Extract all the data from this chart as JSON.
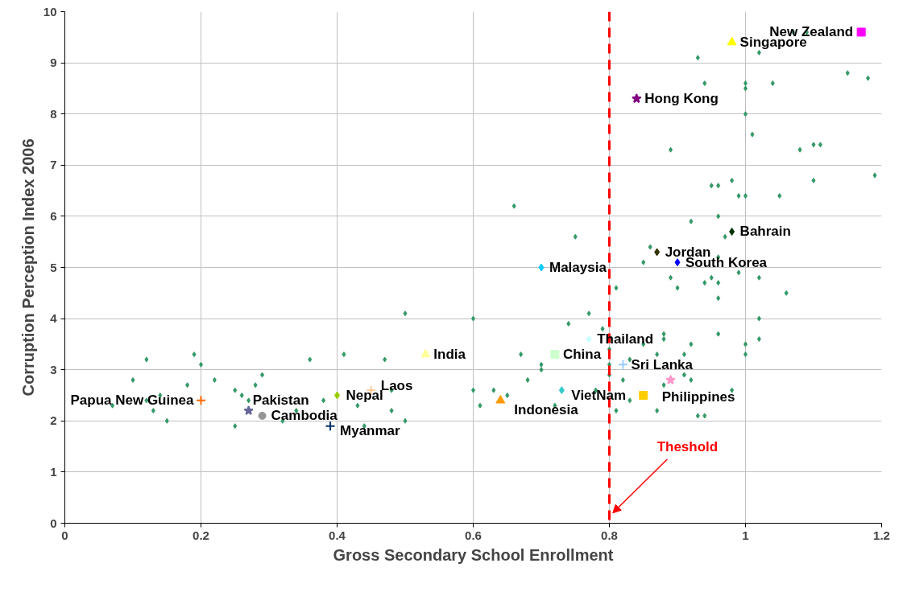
{
  "chart_data": {
    "type": "scatter",
    "xlabel": "Gross Secondary School Enrollment",
    "ylabel": "Corruption Perception Index 2006",
    "xlim": [
      0,
      1.2
    ],
    "ylim": [
      0,
      10
    ],
    "xticks": [
      0,
      0.2,
      0.4,
      0.6,
      0.8,
      1,
      1.2
    ],
    "yticks": [
      0,
      1,
      2,
      3,
      4,
      5,
      6,
      7,
      8,
      9,
      10
    ],
    "grid": true,
    "legend": false,
    "ref_lines": [
      {
        "axis": "x",
        "value": 0.8,
        "label": "Theshold",
        "color": "#ff0000",
        "line_style": "dashed"
      }
    ],
    "series": [
      {
        "color": "#339966",
        "marker": "diamond",
        "x": [
          0.07,
          0.1,
          0.12,
          0.12,
          0.13,
          0.14,
          0.15,
          0.18,
          0.19,
          0.2,
          0.22,
          0.25,
          0.26,
          0.27,
          0.28,
          0.29,
          0.25,
          0.32,
          0.34,
          0.36,
          0.38,
          0.41,
          0.43,
          0.44,
          0.47,
          0.48,
          0.48,
          0.66,
          0.75,
          0.85,
          0.5,
          0.6,
          0.74,
          0.77,
          0.79,
          0.81,
          0.67,
          0.7,
          0.7,
          0.68,
          0.6,
          0.63,
          0.65,
          0.61,
          0.72,
          0.5,
          0.8,
          0.8,
          0.8,
          0.78,
          0.81,
          0.82,
          0.83,
          0.83,
          1.07,
          1.09,
          1.02,
          0.93,
          1.15,
          1.18,
          0.94,
          1.0,
          1.0,
          1.04,
          1.0,
          1.01,
          0.89,
          1.08,
          1.1,
          1.11,
          1.19,
          0.98,
          1.1,
          0.95,
          0.96,
          0.99,
          1.0,
          1.05,
          0.96,
          0.92,
          0.97,
          0.86,
          0.96,
          0.99,
          0.89,
          0.95,
          1.02,
          0.9,
          0.94,
          0.96,
          1.06,
          0.96,
          1.02,
          0.96,
          0.88,
          0.88,
          1.02,
          0.85,
          0.92,
          1.0,
          0.87,
          0.91,
          1.0,
          0.91,
          0.92,
          0.88,
          0.98,
          0.87,
          0.93,
          0.94
        ],
        "values": [
          2.3,
          2.8,
          3.2,
          2.4,
          2.2,
          2.5,
          2.0,
          2.7,
          3.3,
          3.1,
          2.8,
          2.6,
          2.5,
          2.4,
          2.7,
          2.9,
          1.9,
          2.0,
          2.2,
          3.2,
          2.4,
          3.3,
          2.3,
          1.9,
          3.2,
          2.6,
          2.2,
          6.2,
          5.6,
          5.1,
          4.1,
          4.0,
          3.9,
          4.1,
          3.8,
          4.6,
          3.3,
          3.1,
          3.0,
          2.8,
          2.6,
          2.6,
          2.5,
          2.3,
          2.3,
          2.0,
          3.4,
          3.1,
          2.9,
          2.6,
          2.2,
          2.8,
          3.2,
          2.4,
          9.6,
          9.6,
          9.2,
          9.1,
          8.8,
          8.7,
          8.6,
          8.6,
          8.5,
          8.6,
          8.0,
          7.6,
          7.3,
          7.3,
          7.4,
          7.4,
          6.8,
          6.7,
          6.7,
          6.6,
          6.6,
          6.4,
          6.4,
          6.4,
          6.0,
          5.9,
          5.6,
          5.4,
          5.2,
          4.9,
          4.8,
          4.8,
          4.8,
          4.6,
          4.7,
          4.7,
          4.5,
          4.4,
          4.0,
          3.7,
          3.7,
          3.6,
          3.6,
          3.5,
          3.5,
          3.5,
          3.3,
          3.3,
          3.3,
          2.9,
          2.8,
          2.7,
          2.6,
          2.2,
          2.1,
          2.1
        ]
      },
      {
        "name": "Papua New Guinea",
        "color": "#ff6600",
        "marker": "cross",
        "x": [
          0.2
        ],
        "values": [
          2.4
        ]
      },
      {
        "name": "Pakistan",
        "color": "#666699",
        "marker": "star",
        "x": [
          0.27
        ],
        "values": [
          2.2
        ]
      },
      {
        "name": "Cambodia",
        "color": "#969696",
        "marker": "circle",
        "x": [
          0.29
        ],
        "values": [
          2.1
        ]
      },
      {
        "name": "Myanmar",
        "color": "#003366",
        "marker": "cross",
        "x": [
          0.39
        ],
        "values": [
          1.9
        ]
      },
      {
        "name": "Nepal",
        "color": "#99cc00",
        "marker": "diamond",
        "x": [
          0.4
        ],
        "values": [
          2.5
        ]
      },
      {
        "name": "Laos",
        "color": "#ffcc99",
        "marker": "cross",
        "x": [
          0.45
        ],
        "values": [
          2.6
        ]
      },
      {
        "name": "India",
        "color": "#ffff99",
        "marker": "triangle",
        "x": [
          0.53
        ],
        "values": [
          3.3
        ]
      },
      {
        "name": "Indonesia",
        "color": "#ff9900",
        "marker": "triangle",
        "x": [
          0.64
        ],
        "values": [
          2.4
        ]
      },
      {
        "name": "China",
        "color": "#ccffcc",
        "marker": "square",
        "x": [
          0.72
        ],
        "values": [
          3.3
        ]
      },
      {
        "name": "VietNam",
        "color": "#33cccc",
        "marker": "diamond",
        "x": [
          0.73
        ],
        "values": [
          2.6
        ]
      },
      {
        "name": "Thailand",
        "color": "#ccffff",
        "marker": "diamond",
        "x": [
          0.77
        ],
        "values": [
          3.6
        ]
      },
      {
        "name": "Malaysia",
        "color": "#00ccff",
        "marker": "diamond",
        "x": [
          0.7
        ],
        "values": [
          5.0
        ]
      },
      {
        "name": "Sri Lanka",
        "color": "#99ccff",
        "marker": "cross",
        "x": [
          0.82
        ],
        "values": [
          3.1
        ]
      },
      {
        "name": "Philippines",
        "color": "#ffcc00",
        "marker": "square",
        "x": [
          0.85
        ],
        "values": [
          2.5
        ]
      },
      {
        "color": "#ff99cc",
        "marker": "star",
        "x": [
          0.89
        ],
        "values": [
          2.8
        ]
      },
      {
        "name": "Jordan",
        "color": "#333300",
        "marker": "diamond",
        "x": [
          0.87
        ],
        "values": [
          5.3
        ]
      },
      {
        "name": "South Korea",
        "color": "#0000ff",
        "marker": "diamond",
        "x": [
          0.9
        ],
        "values": [
          5.1
        ]
      },
      {
        "name": "Bahrain",
        "color": "#003300",
        "marker": "diamond",
        "x": [
          0.98
        ],
        "values": [
          5.7
        ]
      },
      {
        "name": "Hong Kong",
        "color": "#800080",
        "marker": "star",
        "x": [
          0.84
        ],
        "values": [
          8.3
        ]
      },
      {
        "name": "Singapore",
        "color": "#ffff00",
        "marker": "triangle",
        "x": [
          0.98
        ],
        "values": [
          9.4
        ]
      },
      {
        "name": "New Zealand",
        "color": "#ff00ff",
        "marker": "square",
        "x": [
          1.17
        ],
        "values": [
          9.6
        ]
      }
    ]
  }
}
